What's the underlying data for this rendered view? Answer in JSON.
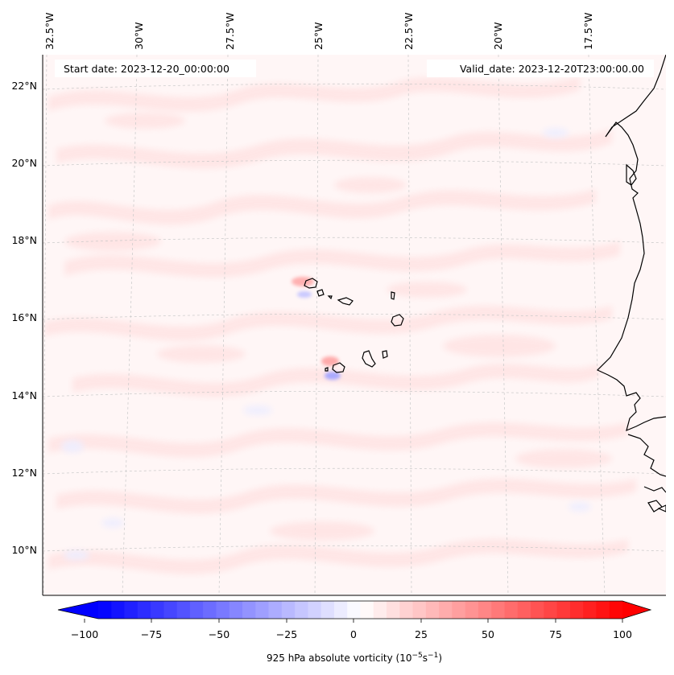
{
  "header": {
    "start_date": "Start date: 2023-12-20_00:00:00",
    "valid_date": "Valid_date: 2023-12-20T23:00:00.00"
  },
  "axes": {
    "lon_labels": [
      "32.5°W",
      "30°W",
      "27.5°W",
      "25°W",
      "22.5°W",
      "20°W",
      "17.5°W"
    ],
    "lat_labels": [
      "22°N",
      "20°N",
      "18°N",
      "16°N",
      "14°N",
      "12°N",
      "10°N"
    ],
    "gridlines": true
  },
  "colorbar": {
    "ticks": [
      "−100",
      "−75",
      "−50",
      "−25",
      "0",
      "25",
      "50",
      "75",
      "100"
    ],
    "label_main": "925 hPa absolute vorticity (10",
    "label_exp1": "−5",
    "label_mid": "s",
    "label_exp2": "−1",
    "label_end": ")",
    "range": [
      -100,
      100
    ],
    "levels": 41,
    "low_color": "#0000ff",
    "high_color": "#ff0000",
    "extend": "both",
    "colormap": "bwr"
  },
  "colors": {
    "field_background": "#fff6f6",
    "weak_positive": "#ffe4e4",
    "moderate_positive": "#ffc2c2",
    "weak_negative": "#e8e8ff",
    "moderate_negative": "#b8b8ff",
    "coastline": "#000000",
    "gridline": "#c8c8c8"
  }
}
